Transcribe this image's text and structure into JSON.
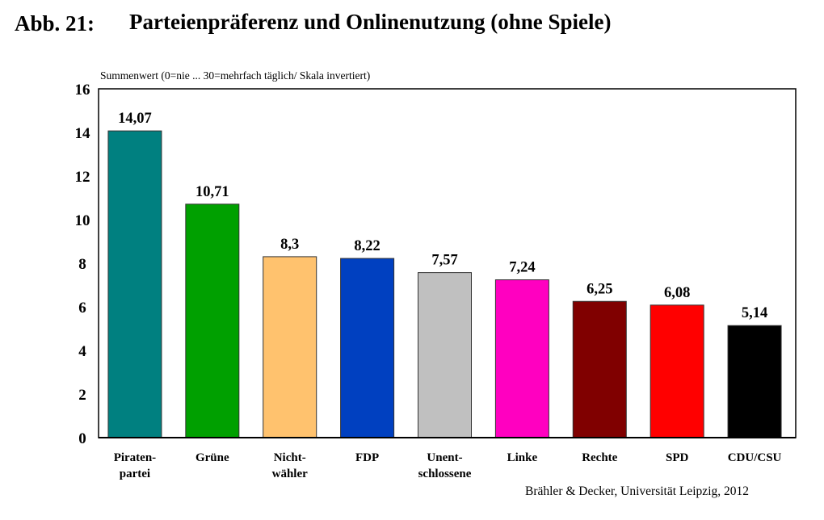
{
  "figure_label": "Abb. 21:",
  "source": "Brähler & Decker, Universität Leipzig, 2012",
  "chart_data": {
    "type": "bar",
    "title": "Parteienpräferenz und Onlinenutzung (ohne Spiele)",
    "ylabel": "Summenwert (0=nie ... 30=mehrfach täglich/ Skala invertiert)",
    "xlabel": "",
    "ylim": [
      0,
      16
    ],
    "yticks": [
      0,
      2,
      4,
      6,
      8,
      10,
      12,
      14,
      16
    ],
    "grid": false,
    "categories": [
      "Piraten-\npartei",
      "Grüne",
      "Nicht-\nwähler",
      "FDP",
      "Unent-\nschlossene",
      "Linke",
      "Rechte",
      "SPD",
      "CDU/CSU"
    ],
    "values": [
      14.07,
      10.71,
      8.3,
      8.22,
      7.57,
      7.24,
      6.25,
      6.08,
      5.14
    ],
    "value_labels": [
      "14,07",
      "10,71",
      "8,3",
      "8,22",
      "7,57",
      "7,24",
      "6,25",
      "6,08",
      "5,14"
    ],
    "colors": [
      "#008080",
      "#00A000",
      "#FFC26E",
      "#0040C0",
      "#C0C0C0",
      "#FF00C0",
      "#800000",
      "#FF0000",
      "#000000"
    ]
  }
}
